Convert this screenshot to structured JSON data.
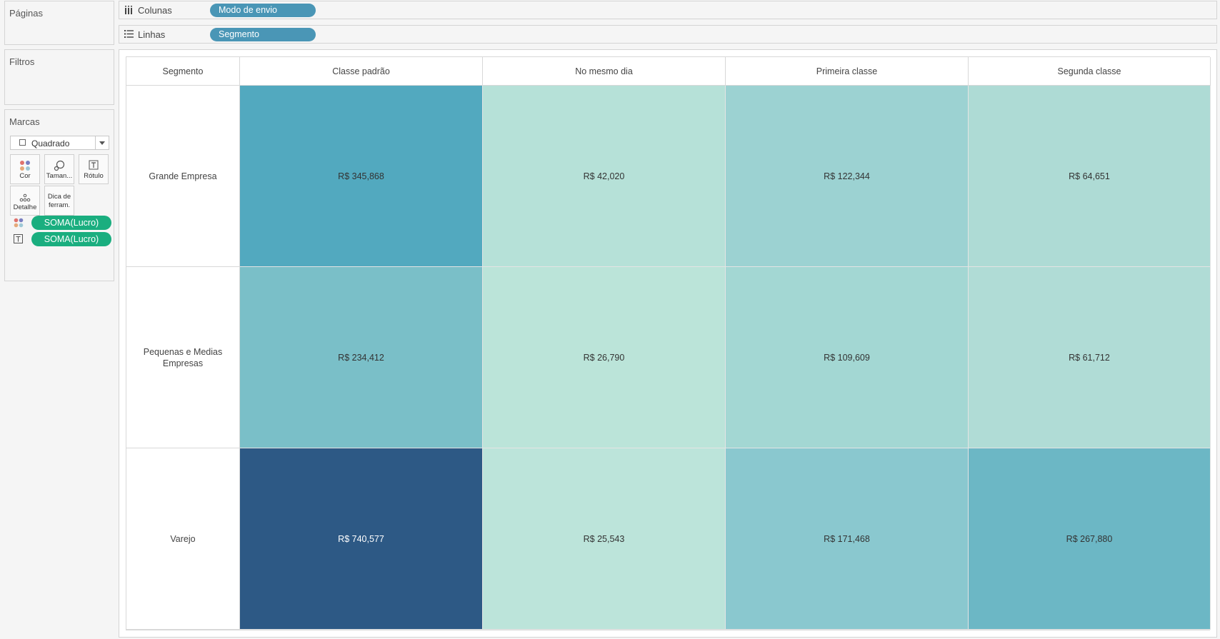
{
  "sidebar": {
    "pages_title": "Páginas",
    "filters_title": "Filtros",
    "marks": {
      "title": "Marcas",
      "mark_type": "Quadrado",
      "buttons": {
        "color": "Cor",
        "size": "Taman...",
        "label": "Rótulo",
        "detail": "Detalhe",
        "tooltip_line1": "Dica de",
        "tooltip_line2": "ferram."
      },
      "fields": [
        {
          "role": "color",
          "label": "SOMA(Lucro)"
        },
        {
          "role": "label",
          "label": "SOMA(Lucro)"
        }
      ]
    }
  },
  "shelves": {
    "columns": {
      "name": "Colunas",
      "pill": "Modo de envio"
    },
    "rows": {
      "name": "Linhas",
      "pill": "Segmento"
    }
  },
  "colors": {
    "pill_blue": "#4a96b6",
    "pill_green": "#1aae7f"
  },
  "chart_data": {
    "type": "heatmap",
    "row_header": "Segmento",
    "columns": [
      "Classe padrão",
      "No mesmo dia",
      "Primeira classe",
      "Segunda classe"
    ],
    "rows": [
      "Grande Empresa",
      "Pequenas e Medias Empresas",
      "Varejo"
    ],
    "values": [
      [
        345868,
        42020,
        122344,
        64651
      ],
      [
        234412,
        26790,
        109609,
        61712
      ],
      [
        740577,
        25543,
        171468,
        267880
      ]
    ],
    "labels": [
      [
        "R$ 345,868",
        "R$ 42,020",
        "R$ 122,344",
        "R$ 64,651"
      ],
      [
        "R$ 234,412",
        "R$ 26,790",
        "R$ 109,609",
        "R$ 61,712"
      ],
      [
        "R$ 740,577",
        "R$ 25,543",
        "R$ 171,468",
        "R$ 267,880"
      ]
    ],
    "cell_colors": [
      [
        "#52a9bf",
        "#b6e1d8",
        "#9cd2d2",
        "#aedbd5"
      ],
      [
        "#7abfc8",
        "#bbe4d9",
        "#a3d7d3",
        "#b0dcd6"
      ],
      [
        "#2d5985",
        "#bce4da",
        "#8ac8cf",
        "#6cb7c5"
      ]
    ]
  }
}
